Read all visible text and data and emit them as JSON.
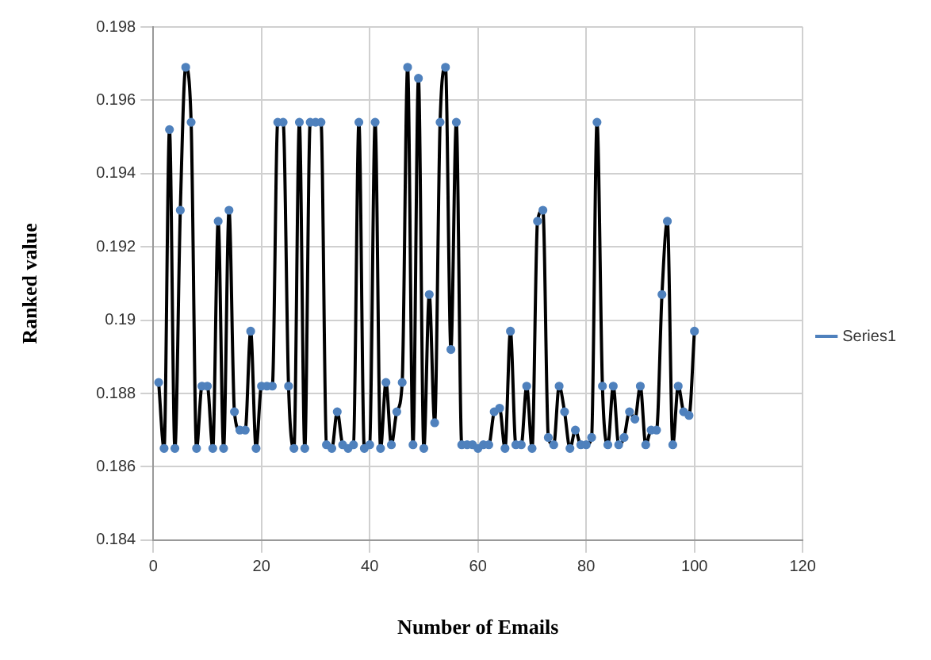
{
  "chart_data": {
    "type": "line",
    "xlabel": "Number of Emails",
    "ylabel": "Ranked value",
    "x": [
      1,
      2,
      3,
      4,
      5,
      6,
      7,
      8,
      9,
      10,
      11,
      12,
      13,
      14,
      15,
      16,
      17,
      18,
      19,
      20,
      21,
      22,
      23,
      24,
      25,
      26,
      27,
      28,
      29,
      30,
      31,
      32,
      33,
      34,
      35,
      36,
      37,
      38,
      39,
      40,
      41,
      42,
      43,
      44,
      45,
      46,
      47,
      48,
      49,
      50,
      51,
      52,
      53,
      54,
      55,
      56,
      57,
      58,
      59,
      60,
      61,
      62,
      63,
      64,
      65,
      66,
      67,
      68,
      69,
      70,
      71,
      72,
      73,
      74,
      75,
      76,
      77,
      78,
      79,
      80,
      81,
      82,
      83,
      84,
      85,
      86,
      87,
      88,
      89,
      90,
      91,
      92,
      93,
      94,
      95,
      96,
      97,
      98,
      99,
      100
    ],
    "series": [
      {
        "name": "Series1",
        "color": "#000000",
        "values": [
          0.1883,
          0.1865,
          0.1952,
          0.1865,
          0.193,
          0.1969,
          0.1954,
          0.1865,
          0.1882,
          0.1882,
          0.1865,
          0.1927,
          0.1865,
          0.193,
          0.1875,
          0.187,
          0.187,
          0.1897,
          0.1865,
          0.1882,
          0.1882,
          0.1882,
          0.1954,
          0.1954,
          0.1882,
          0.1865,
          0.1954,
          0.1865,
          0.1954,
          0.1954,
          0.1954,
          0.1866,
          0.1865,
          0.1875,
          0.1866,
          0.1865,
          0.1866,
          0.1954,
          0.1865,
          0.1866,
          0.1954,
          0.1865,
          0.1883,
          0.1866,
          0.1875,
          0.1883,
          0.1969,
          0.1866,
          0.1966,
          0.1865,
          0.1907,
          0.1872,
          0.1954,
          0.1969,
          0.1892,
          0.1954,
          0.1866,
          0.1866,
          0.1866,
          0.1865,
          0.1866,
          0.1866,
          0.1875,
          0.1876,
          0.1865,
          0.1897,
          0.1866,
          0.1866,
          0.1882,
          0.1865,
          0.1927,
          0.193,
          0.1868,
          0.1866,
          0.1882,
          0.1875,
          0.1865,
          0.187,
          0.1866,
          0.1866,
          0.1868,
          0.1954,
          0.1882,
          0.1866,
          0.1882,
          0.1866,
          0.1868,
          0.1875,
          0.1873,
          0.1882,
          0.1866,
          0.187,
          0.187,
          0.1907,
          0.1927,
          0.1866,
          0.1882,
          0.1875,
          0.1874,
          0.1897
        ]
      }
    ],
    "marker": "circle",
    "xlim": [
      0,
      120
    ],
    "xticks": [
      0,
      20,
      40,
      60,
      80,
      100,
      120
    ],
    "ylim": [
      0.184,
      0.198
    ],
    "yticks": [
      0.184,
      0.186,
      0.188,
      0.19,
      0.192,
      0.194,
      0.196,
      0.198
    ],
    "grid": true,
    "legend": "right"
  }
}
